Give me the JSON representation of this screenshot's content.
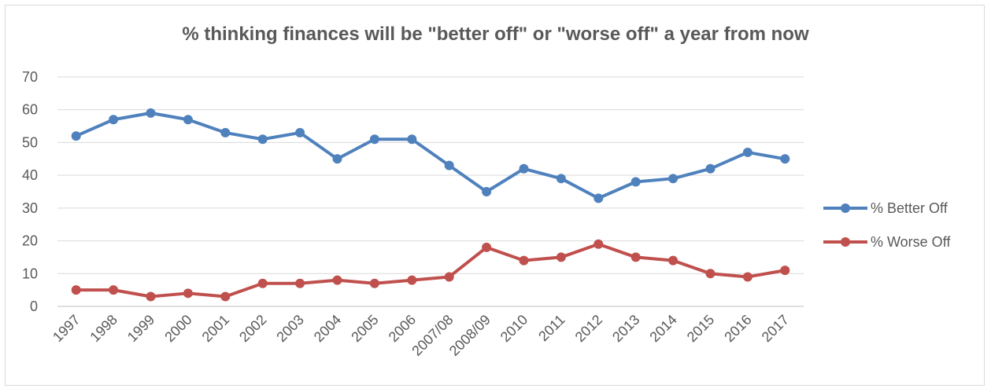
{
  "chart_data": {
    "type": "line",
    "title": "% thinking finances will be \"better off\" or \"worse off\" a year from now",
    "xlabel": "",
    "ylabel": "",
    "ylim": [
      0,
      70
    ],
    "yticks": [
      0,
      10,
      20,
      30,
      40,
      50,
      60,
      70
    ],
    "grid": true,
    "legend_position": "right",
    "categories": [
      "1997",
      "1998",
      "1999",
      "2000",
      "2001",
      "2002",
      "2003",
      "2004",
      "2005",
      "2006",
      "2007/08",
      "2008/09",
      "2010",
      "2011",
      "2012",
      "2013",
      "2014",
      "2015",
      "2016",
      "2017"
    ],
    "series": [
      {
        "name": "% Better Off",
        "color": "#4f81bd",
        "values": [
          52,
          57,
          59,
          57,
          53,
          51,
          53,
          45,
          51,
          51,
          43,
          35,
          42,
          39,
          33,
          38,
          39,
          42,
          47,
          45
        ]
      },
      {
        "name": "% Worse Off",
        "color": "#c0504d",
        "values": [
          5,
          5,
          3,
          4,
          3,
          7,
          7,
          8,
          7,
          8,
          9,
          18,
          14,
          15,
          19,
          15,
          14,
          10,
          9,
          11
        ]
      }
    ]
  }
}
